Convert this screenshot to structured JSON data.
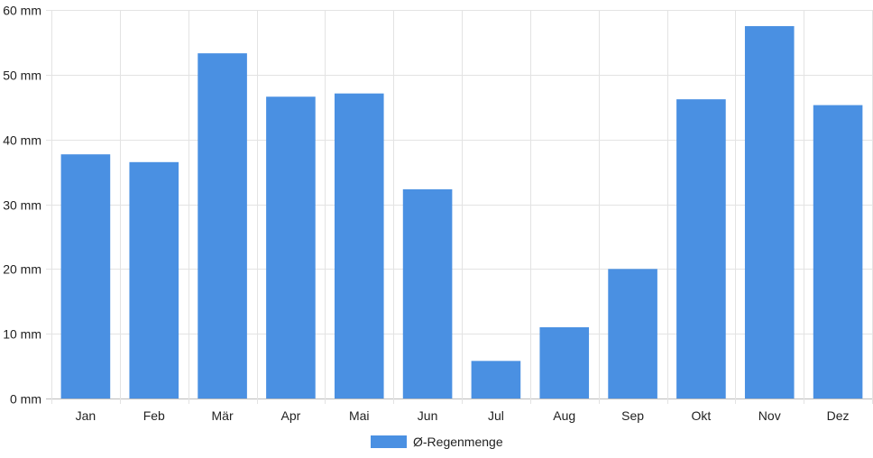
{
  "chart_data": {
    "type": "bar",
    "categories": [
      "Jan",
      "Feb",
      "Mär",
      "Apr",
      "Mai",
      "Jun",
      "Jul",
      "Aug",
      "Sep",
      "Okt",
      "Nov",
      "Dez"
    ],
    "series": [
      {
        "name": "Ø-Regenmenge",
        "values": [
          37.7,
          36.5,
          53.3,
          46.6,
          47.1,
          32.3,
          5.8,
          11.0,
          20.0,
          46.2,
          57.5,
          45.3
        ],
        "color": "#4a90e2"
      }
    ],
    "y_unit": "mm",
    "ylim": [
      0,
      60
    ],
    "y_ticks": [
      0,
      10,
      20,
      30,
      40,
      50,
      60
    ],
    "grid": true,
    "legend_position": "bottom"
  }
}
